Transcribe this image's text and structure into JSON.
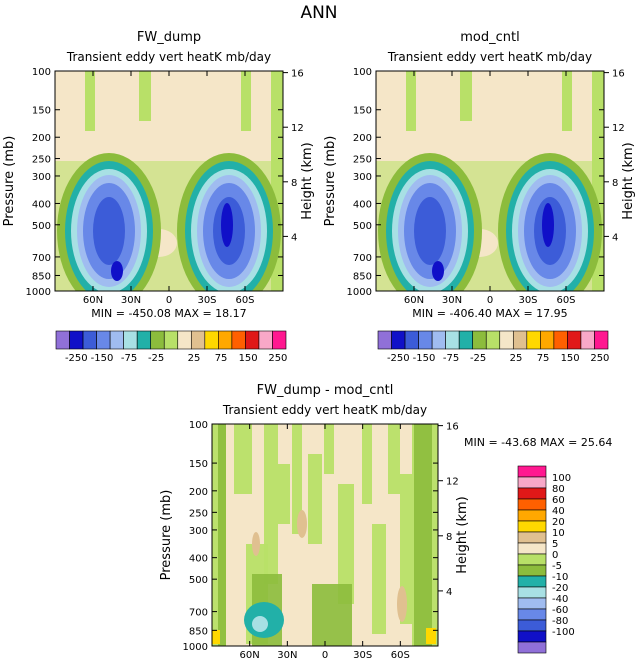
{
  "page_title": "ANN",
  "colors": {
    "tan": "#f5e6c8",
    "lightgreen": "#b8e068",
    "green": "#8cbc3c",
    "teal": "#22b0a8",
    "cyan": "#a8e0e4",
    "lightblue": "#a0bcf0",
    "blue": "#6888e8",
    "midblue": "#3c5cd8",
    "darkblue": "#1010c8",
    "purple": "#9070d8",
    "khaki": "#e0c090"
  },
  "chart_data": [
    {
      "id": "top-left",
      "type": "contour",
      "title": "FW_dump",
      "subtitle": "Transient  eddy  vert  heatK  mb/day",
      "ylabel": "Pressure  (mb)",
      "y2label": "Height  (km)",
      "x_ticks": [
        "60N",
        "30N",
        "0",
        "30S",
        "60S"
      ],
      "x_values": [
        60,
        30,
        0,
        -30,
        -60
      ],
      "xlim": [
        90,
        -90
      ],
      "y_ticks": [
        100,
        150,
        200,
        250,
        300,
        400,
        500,
        700,
        850,
        1000
      ],
      "ylim": [
        100,
        1000
      ],
      "y2_ticks": [
        4,
        8,
        12,
        16
      ],
      "stats": "MIN = -450.08   MAX =  18.17"
    },
    {
      "id": "top-right",
      "type": "contour",
      "title": "mod_cntl",
      "subtitle": "Transient  eddy  vert  heatK  mb/day",
      "ylabel": "Pressure  (mb)",
      "y2label": "Height  (km)",
      "x_ticks": [
        "60N",
        "30N",
        "0",
        "30S",
        "60S"
      ],
      "x_values": [
        60,
        30,
        0,
        -30,
        -60
      ],
      "xlim": [
        90,
        -90
      ],
      "y_ticks": [
        100,
        150,
        200,
        250,
        300,
        400,
        500,
        700,
        850,
        1000
      ],
      "ylim": [
        100,
        1000
      ],
      "y2_ticks": [
        4,
        8,
        12,
        16
      ],
      "stats": "MIN = -406.40   MAX =  17.95"
    },
    {
      "id": "bottom",
      "type": "contour",
      "title": "FW_dump - mod_cntl",
      "subtitle": "Transient  eddy  vert  heatK  mb/day",
      "ylabel": "Pressure  (mb)",
      "y2label": "Height  (km)",
      "x_ticks": [
        "60N",
        "30N",
        "0",
        "30S",
        "60S"
      ],
      "x_values": [
        60,
        30,
        0,
        -30,
        -60
      ],
      "xlim": [
        90,
        -90
      ],
      "y_ticks": [
        100,
        150,
        200,
        250,
        300,
        400,
        500,
        700,
        850,
        1000
      ],
      "ylim": [
        100,
        1000
      ],
      "y2_ticks": [
        4,
        8,
        12,
        16
      ],
      "stats": "MIN = -43.68   MAX =  25.64"
    }
  ],
  "colorbar_top": {
    "colors": [
      "#9070d8",
      "#1010c8",
      "#3c5cd8",
      "#6888e8",
      "#a0bcf0",
      "#a8e0e4",
      "#22b0a8",
      "#8cbc3c",
      "#b8e068",
      "#f5e6c8",
      "#e0c090",
      "#ffd800",
      "#ffa800",
      "#ff6000",
      "#e01818",
      "#f8a8c8",
      "#ff1890"
    ],
    "labels": [
      "-250",
      "-150",
      "-75",
      "-25",
      "25",
      "75",
      "150",
      "250"
    ]
  },
  "colorbar_bottom": {
    "colors": [
      "#ff1890",
      "#f8a8c8",
      "#e01818",
      "#ff6000",
      "#ffa800",
      "#ffd800",
      "#e0c090",
      "#f5e6c8",
      "#b8e068",
      "#8cbc3c",
      "#22b0a8",
      "#a8e0e4",
      "#a0bcf0",
      "#6888e8",
      "#3c5cd8",
      "#1010c8",
      "#9070d8"
    ],
    "labels": [
      "100",
      "80",
      "60",
      "40",
      "20",
      "10",
      "5",
      "0",
      "-5",
      "-10",
      "-20",
      "-40",
      "-60",
      "-80",
      "-100"
    ]
  }
}
